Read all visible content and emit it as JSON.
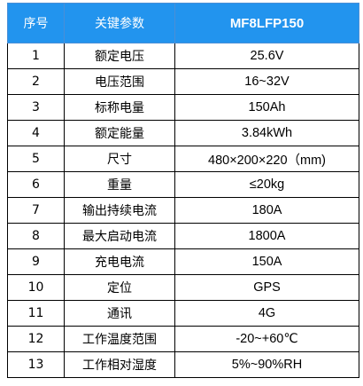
{
  "header": {
    "col_index": "序号",
    "col_param": "关键参数",
    "col_model": "MF8LFP150"
  },
  "colors": {
    "header_bg": "#2294ee",
    "header_text": "#ffffff",
    "border": "#000000"
  },
  "rows": [
    {
      "no": "1",
      "param": "额定电压",
      "value": "25.6V"
    },
    {
      "no": "2",
      "param": "电压范围",
      "value": "16~32V"
    },
    {
      "no": "3",
      "param": "标称电量",
      "value": "150Ah"
    },
    {
      "no": "4",
      "param": "额定能量",
      "value": "3.84kWh"
    },
    {
      "no": "5",
      "param": "尺寸",
      "value": "480×200×220（mm)"
    },
    {
      "no": "6",
      "param": "重量",
      "value": "≤20kg"
    },
    {
      "no": "7",
      "param": "输出持续电流",
      "value": "180A"
    },
    {
      "no": "8",
      "param": "最大启动电流",
      "value": "1800A"
    },
    {
      "no": "9",
      "param": "充电电流",
      "value": "150A"
    },
    {
      "no": "10",
      "param": "定位",
      "value": "GPS"
    },
    {
      "no": "11",
      "param": "通讯",
      "value": "4G"
    },
    {
      "no": "12",
      "param": "工作温度范围",
      "value": "-20~+60℃"
    },
    {
      "no": "13",
      "param": "工作相对湿度",
      "value": "5%~90%RH"
    }
  ]
}
